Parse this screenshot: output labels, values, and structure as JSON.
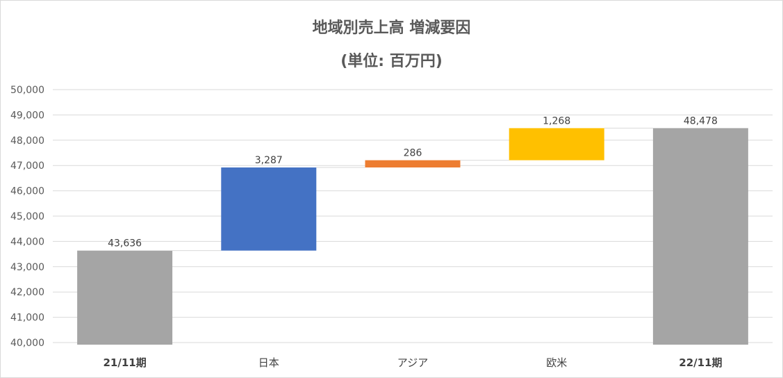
{
  "chart_data": {
    "type": "waterfall",
    "title": "地域別売上高 増減要因",
    "subtitle": "(単位: 百万円)",
    "categories": [
      "21/11期",
      "日本",
      "アジア",
      "欧米",
      "22/11期"
    ],
    "bold_categories": [
      "21/11期",
      "22/11期"
    ],
    "values": [
      43636,
      3287,
      286,
      1268,
      48478
    ],
    "data_labels": [
      "43,636",
      "3,287",
      "286",
      "1,268",
      "48,478"
    ],
    "kinds": [
      "total",
      "increase",
      "increase",
      "increase",
      "total"
    ],
    "colors": [
      "#a5a5a5",
      "#4472c4",
      "#ed7d31",
      "#ffc000",
      "#a5a5a5"
    ],
    "ylim": [
      40000,
      50000
    ],
    "yticks": [
      40000,
      41000,
      42000,
      43000,
      44000,
      45000,
      46000,
      47000,
      48000,
      49000,
      50000
    ],
    "ytick_labels": [
      "40,000",
      "41,000",
      "42,000",
      "43,000",
      "44,000",
      "45,000",
      "46,000",
      "47,000",
      "48,000",
      "49,000",
      "50,000"
    ],
    "grid": true,
    "gridline_color": "#d9d9d9",
    "connector_color": "#d9d9d9",
    "legend": "none"
  }
}
